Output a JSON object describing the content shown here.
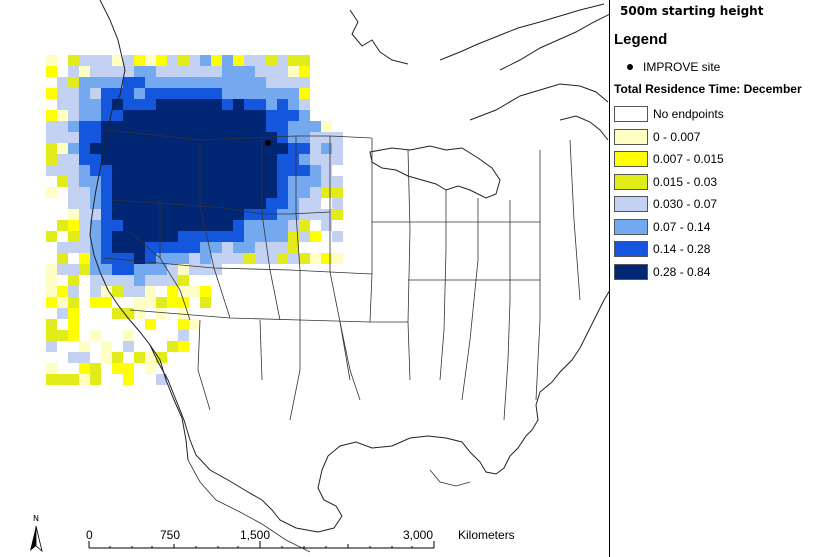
{
  "panel": {
    "title": "500m starting height",
    "legend_title": "Legend",
    "site_label": "IMPROVE site",
    "residence_title": "Total Residence Time: December",
    "classes": [
      {
        "label": "No endpoints",
        "color": "#ffffff"
      },
      {
        "label": "0 - 0.007",
        "color": "#ffffc4"
      },
      {
        "label": "0.007 - 0.015",
        "color": "#ffff00"
      },
      {
        "label": "0.015 - 0.03",
        "color": "#e1ec1a"
      },
      {
        "label": "0.030 - 0.07",
        "color": "#c3d1f2"
      },
      {
        "label": "0.07 - 0.14",
        "color": "#74a9f0"
      },
      {
        "label": "0.14 - 0.28",
        "color": "#1557dc"
      },
      {
        "label": "0.28 - 0.84",
        "color": "#002674"
      }
    ]
  },
  "scale_bar": {
    "ticks": [
      "0",
      "750",
      "1,500",
      "3,000"
    ],
    "unit": "Kilometers",
    "north_label": "N"
  },
  "map": {
    "site_marker": "IMPROVE site"
  }
}
